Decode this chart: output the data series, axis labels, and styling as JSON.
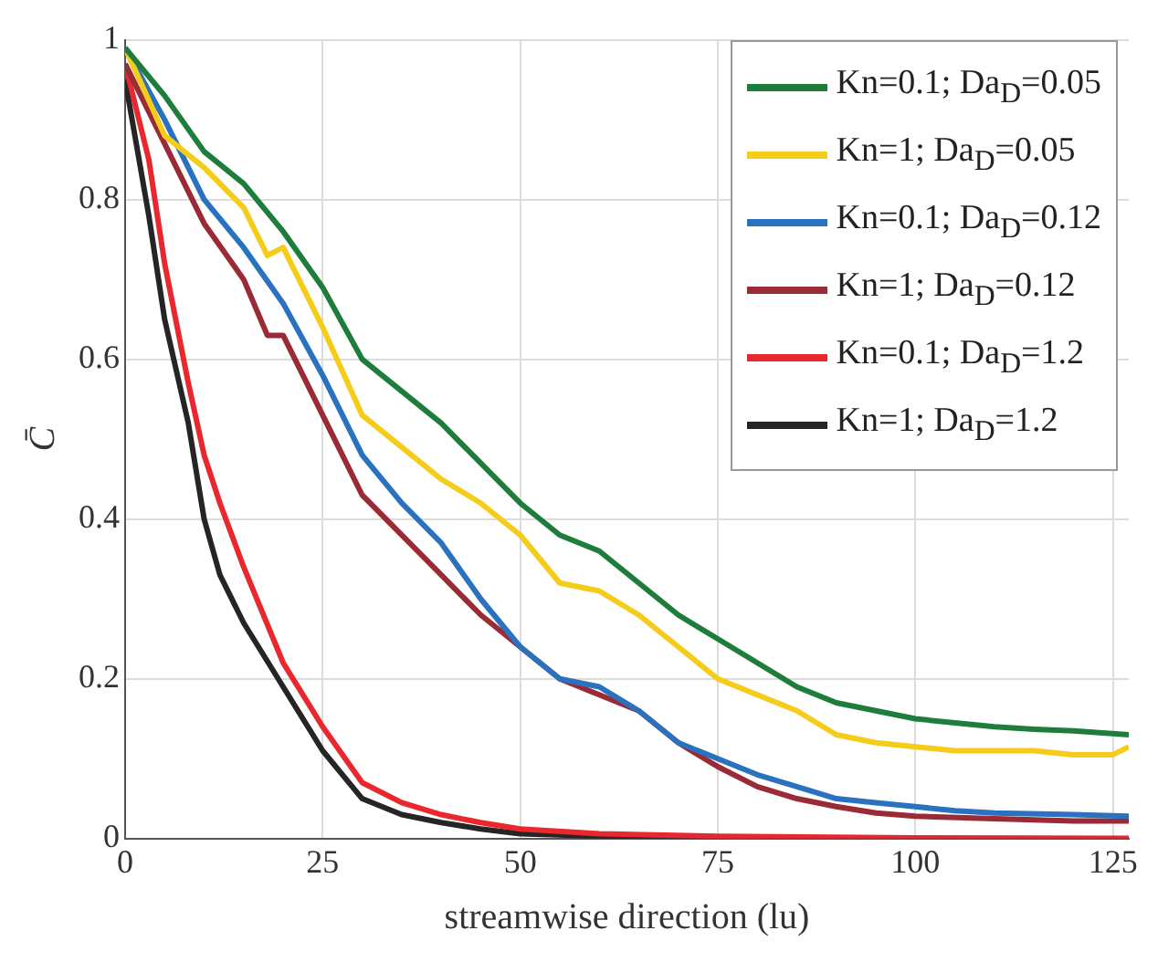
{
  "chart_data": {
    "type": "line",
    "xlabel": "streamwise direction (lu)",
    "ylabel": "C̄",
    "xlim": [
      0,
      127
    ],
    "xticks": [
      0,
      25,
      50,
      75,
      100,
      125
    ],
    "ylim": [
      0,
      1
    ],
    "yticks": [
      0,
      0.2,
      0.4,
      0.6,
      0.8,
      1
    ],
    "grid": true,
    "legend": "top right",
    "marker": "none",
    "line_style": "solid",
    "series": [
      {
        "name": "Kn=0.1; Da$_{D}$=0.05",
        "color": "#1e7d3a",
        "x": [
          0,
          5,
          10,
          15,
          20,
          25,
          30,
          35,
          40,
          45,
          50,
          55,
          60,
          65,
          70,
          75,
          80,
          85,
          90,
          95,
          100,
          105,
          110,
          115,
          120,
          127
        ],
        "values": [
          0.99,
          0.93,
          0.86,
          0.82,
          0.76,
          0.69,
          0.6,
          0.56,
          0.52,
          0.47,
          0.42,
          0.38,
          0.36,
          0.32,
          0.28,
          0.25,
          0.22,
          0.19,
          0.17,
          0.16,
          0.15,
          0.145,
          0.14,
          0.137,
          0.135,
          0.13
        ]
      },
      {
        "name": "Kn=1; Da$_{D}$=0.05",
        "color": "#f5cc1a",
        "x": [
          0,
          5,
          10,
          15,
          18,
          20,
          25,
          30,
          35,
          40,
          45,
          50,
          55,
          60,
          65,
          70,
          75,
          80,
          85,
          90,
          95,
          100,
          105,
          110,
          115,
          120,
          125,
          127
        ],
        "values": [
          0.99,
          0.88,
          0.84,
          0.79,
          0.73,
          0.74,
          0.64,
          0.53,
          0.49,
          0.45,
          0.42,
          0.38,
          0.32,
          0.31,
          0.28,
          0.24,
          0.2,
          0.18,
          0.16,
          0.13,
          0.12,
          0.115,
          0.11,
          0.11,
          0.11,
          0.105,
          0.105,
          0.115
        ]
      },
      {
        "name": "Kn=0.1; Da$_{D}$=0.12",
        "color": "#2a72bf",
        "x": [
          0,
          5,
          10,
          15,
          20,
          25,
          30,
          35,
          40,
          45,
          50,
          55,
          60,
          65,
          70,
          75,
          80,
          85,
          90,
          95,
          100,
          105,
          110,
          120,
          127
        ],
        "values": [
          0.99,
          0.9,
          0.8,
          0.74,
          0.67,
          0.58,
          0.48,
          0.42,
          0.37,
          0.3,
          0.24,
          0.2,
          0.19,
          0.16,
          0.12,
          0.1,
          0.08,
          0.065,
          0.05,
          0.045,
          0.04,
          0.035,
          0.032,
          0.03,
          0.028
        ]
      },
      {
        "name": "Kn=1; Da$_{D}$=0.12",
        "color": "#9a2a35",
        "x": [
          0,
          5,
          10,
          15,
          18,
          20,
          25,
          30,
          35,
          40,
          45,
          50,
          55,
          60,
          65,
          70,
          75,
          80,
          85,
          90,
          95,
          100,
          110,
          120,
          127
        ],
        "values": [
          0.97,
          0.87,
          0.77,
          0.7,
          0.63,
          0.63,
          0.53,
          0.43,
          0.38,
          0.33,
          0.28,
          0.24,
          0.2,
          0.18,
          0.16,
          0.12,
          0.09,
          0.065,
          0.05,
          0.04,
          0.032,
          0.028,
          0.025,
          0.022,
          0.022
        ]
      },
      {
        "name": "Kn=0.1; Da$_{D}$=1.2",
        "color": "#e8282e",
        "x": [
          0,
          3,
          5,
          8,
          10,
          12,
          15,
          20,
          25,
          30,
          35,
          40,
          45,
          50,
          60,
          75,
          100,
          127
        ],
        "values": [
          0.97,
          0.85,
          0.72,
          0.57,
          0.48,
          0.42,
          0.34,
          0.22,
          0.14,
          0.07,
          0.045,
          0.03,
          0.02,
          0.012,
          0.006,
          0.003,
          0.001,
          0
        ]
      },
      {
        "name": "Kn=1; Da$_{D}$=1.2",
        "color": "#252525",
        "x": [
          0,
          3,
          5,
          8,
          10,
          12,
          15,
          20,
          25,
          30,
          35,
          40,
          45,
          50,
          60,
          75,
          100,
          127
        ],
        "values": [
          0.95,
          0.78,
          0.65,
          0.52,
          0.4,
          0.33,
          0.27,
          0.19,
          0.11,
          0.05,
          0.03,
          0.02,
          0.012,
          0.006,
          0.003,
          0.001,
          0,
          0
        ]
      }
    ]
  }
}
